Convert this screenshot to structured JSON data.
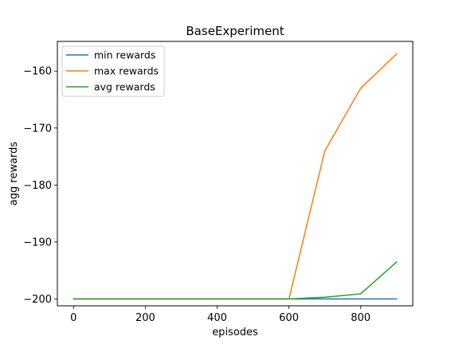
{
  "chart_data": {
    "type": "line",
    "title": "BaseExperiment",
    "xlabel": "episodes",
    "ylabel": "agg rewards",
    "x": [
      0,
      100,
      200,
      300,
      400,
      500,
      600,
      700,
      800,
      900
    ],
    "series": [
      {
        "name": "min rewards",
        "color": "#1f77b4",
        "values": [
          -200,
          -200,
          -200,
          -200,
          -200,
          -200,
          -200,
          -200,
          -200,
          -200
        ]
      },
      {
        "name": "max rewards",
        "color": "#ff7f0e",
        "values": [
          -200,
          -200,
          -200,
          -200,
          -200,
          -200,
          -200,
          -174,
          -163,
          -157
        ]
      },
      {
        "name": "avg rewards",
        "color": "#2ca02c",
        "values": [
          -200,
          -200,
          -200,
          -200,
          -200,
          -200,
          -200,
          -199.7,
          -199.1,
          -193.5
        ]
      }
    ],
    "xticks": [
      0,
      200,
      400,
      600,
      800
    ],
    "yticks": [
      -200,
      -190,
      -180,
      -170,
      -160
    ],
    "xlim": [
      -45,
      945
    ],
    "ylim": [
      -201.2,
      -154.8
    ],
    "grid": false,
    "legend_position": "upper-left"
  }
}
